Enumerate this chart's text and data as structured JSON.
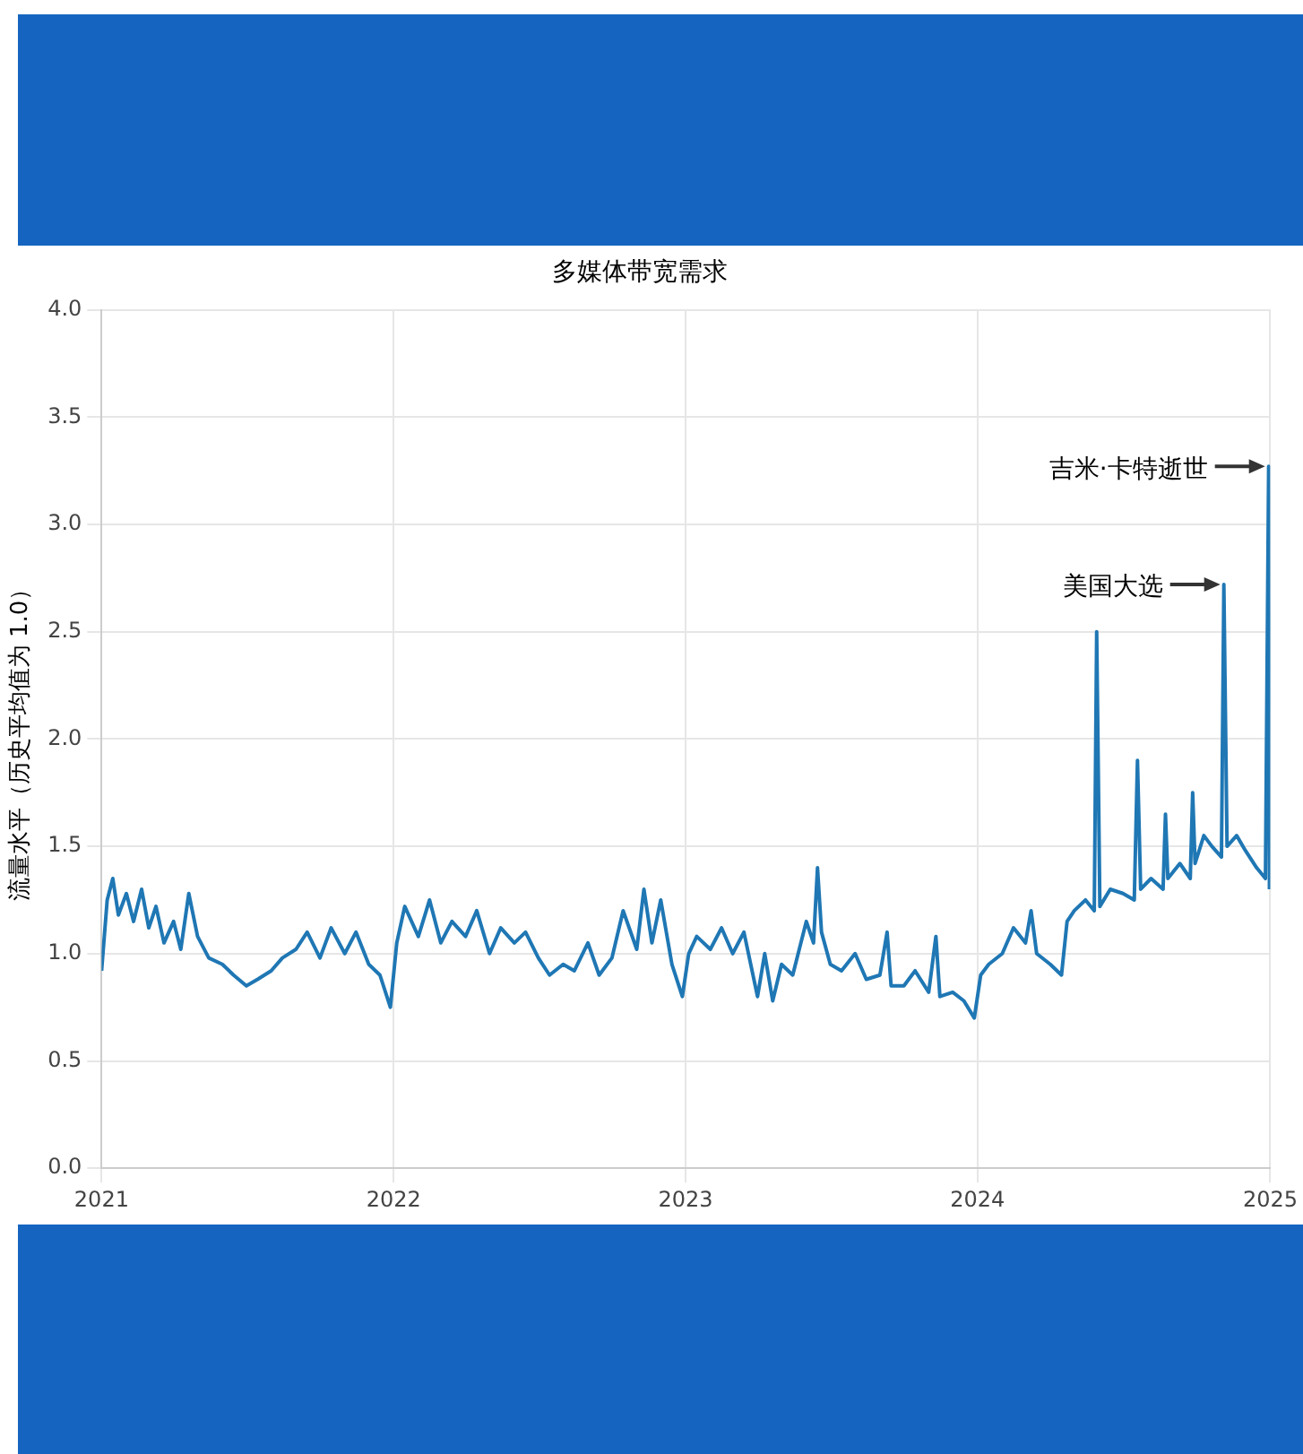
{
  "chart_data": {
    "type": "line",
    "title": "多媒体带宽需求",
    "ylabel": "流量水平（历史平均值为 1.0）",
    "x": [
      "2021-01-01",
      "2021-01-08",
      "2021-01-15",
      "2021-01-22",
      "2021-02-01",
      "2021-02-10",
      "2021-02-20",
      "2021-03-01",
      "2021-03-10",
      "2021-03-20",
      "2021-04-01",
      "2021-04-10",
      "2021-04-20",
      "2021-05-01",
      "2021-05-15",
      "2021-06-01",
      "2021-06-15",
      "2021-07-01",
      "2021-07-15",
      "2021-08-01",
      "2021-08-15",
      "2021-09-01",
      "2021-09-15",
      "2021-10-01",
      "2021-10-15",
      "2021-11-01",
      "2021-11-15",
      "2021-12-01",
      "2021-12-15",
      "2021-12-28",
      "2022-01-05",
      "2022-01-15",
      "2022-02-01",
      "2022-02-15",
      "2022-03-01",
      "2022-03-15",
      "2022-04-01",
      "2022-04-15",
      "2022-05-01",
      "2022-05-15",
      "2022-06-01",
      "2022-06-15",
      "2022-07-01",
      "2022-07-15",
      "2022-08-01",
      "2022-08-15",
      "2022-09-01",
      "2022-09-15",
      "2022-10-01",
      "2022-10-15",
      "2022-11-01",
      "2022-11-10",
      "2022-11-20",
      "2022-12-01",
      "2022-12-15",
      "2022-12-28",
      "2023-01-05",
      "2023-01-15",
      "2023-02-01",
      "2023-02-15",
      "2023-03-01",
      "2023-03-15",
      "2023-04-01",
      "2023-04-10",
      "2023-04-20",
      "2023-05-01",
      "2023-05-15",
      "2023-06-01",
      "2023-06-10",
      "2023-06-15",
      "2023-06-20",
      "2023-07-01",
      "2023-07-15",
      "2023-08-01",
      "2023-08-15",
      "2023-09-01",
      "2023-09-10",
      "2023-09-15",
      "2023-10-01",
      "2023-10-15",
      "2023-11-01",
      "2023-11-10",
      "2023-11-15",
      "2023-12-01",
      "2023-12-15",
      "2023-12-28",
      "2024-01-05",
      "2024-01-15",
      "2024-02-01",
      "2024-02-15",
      "2024-03-01",
      "2024-03-08",
      "2024-03-15",
      "2024-04-01",
      "2024-04-15",
      "2024-04-22",
      "2024-05-01",
      "2024-05-15",
      "2024-05-26",
      "2024-05-29",
      "2024-06-02",
      "2024-06-15",
      "2024-07-01",
      "2024-07-15",
      "2024-07-19",
      "2024-07-23",
      "2024-08-05",
      "2024-08-20",
      "2024-08-23",
      "2024-08-26",
      "2024-09-10",
      "2024-09-23",
      "2024-09-26",
      "2024-09-29",
      "2024-10-10",
      "2024-10-20",
      "2024-11-01",
      "2024-11-04",
      "2024-11-08",
      "2024-11-20",
      "2024-12-01",
      "2024-12-15",
      "2024-12-26",
      "2024-12-30",
      "2024-12-31"
    ],
    "values": [
      0.92,
      1.25,
      1.35,
      1.18,
      1.28,
      1.15,
      1.3,
      1.12,
      1.22,
      1.05,
      1.15,
      1.02,
      1.28,
      1.08,
      0.98,
      0.95,
      0.9,
      0.85,
      0.88,
      0.92,
      0.98,
      1.02,
      1.1,
      0.98,
      1.12,
      1.0,
      1.1,
      0.95,
      0.9,
      0.75,
      1.05,
      1.22,
      1.08,
      1.25,
      1.05,
      1.15,
      1.08,
      1.2,
      1.0,
      1.12,
      1.05,
      1.1,
      0.98,
      0.9,
      0.95,
      0.92,
      1.05,
      0.9,
      0.98,
      1.2,
      1.02,
      1.3,
      1.05,
      1.25,
      0.95,
      0.8,
      1.0,
      1.08,
      1.02,
      1.12,
      1.0,
      1.1,
      0.8,
      1.0,
      0.78,
      0.95,
      0.9,
      1.15,
      1.05,
      1.4,
      1.1,
      0.95,
      0.92,
      1.0,
      0.88,
      0.9,
      1.1,
      0.85,
      0.85,
      0.92,
      0.82,
      1.08,
      0.8,
      0.82,
      0.78,
      0.7,
      0.9,
      0.95,
      1.0,
      1.12,
      1.05,
      1.2,
      1.0,
      0.95,
      0.9,
      1.15,
      1.2,
      1.25,
      1.2,
      2.5,
      1.22,
      1.3,
      1.28,
      1.25,
      1.9,
      1.3,
      1.35,
      1.3,
      1.65,
      1.35,
      1.42,
      1.35,
      1.75,
      1.42,
      1.55,
      1.5,
      1.45,
      2.72,
      1.5,
      1.55,
      1.48,
      1.4,
      1.35,
      3.27,
      1.3
    ],
    "ylim": [
      0,
      4
    ],
    "yticks": [
      {
        "value": 0,
        "label": "0.0"
      },
      0.5,
      {
        "value": 1,
        "label": "1.0"
      },
      1.5,
      {
        "value": 2,
        "label": "2.0"
      },
      2.5,
      {
        "value": 3,
        "label": "3.0"
      },
      3.5,
      {
        "value": 4,
        "label": "4.0"
      }
    ],
    "xlim": [
      "2021-01-01",
      "2025-01-01"
    ],
    "xticks": [
      "2021",
      "2022",
      "2023",
      "2024",
      "2025"
    ],
    "color": "#1f77b4",
    "grid": true,
    "marker": "none",
    "line_style": "solid",
    "annotations": [
      {
        "text": "吉米·卡特逝世",
        "x": "2024-12-30",
        "y": 3.27
      },
      {
        "text": "美国大选",
        "x": "2024-11-04",
        "y": 2.72
      }
    ]
  }
}
